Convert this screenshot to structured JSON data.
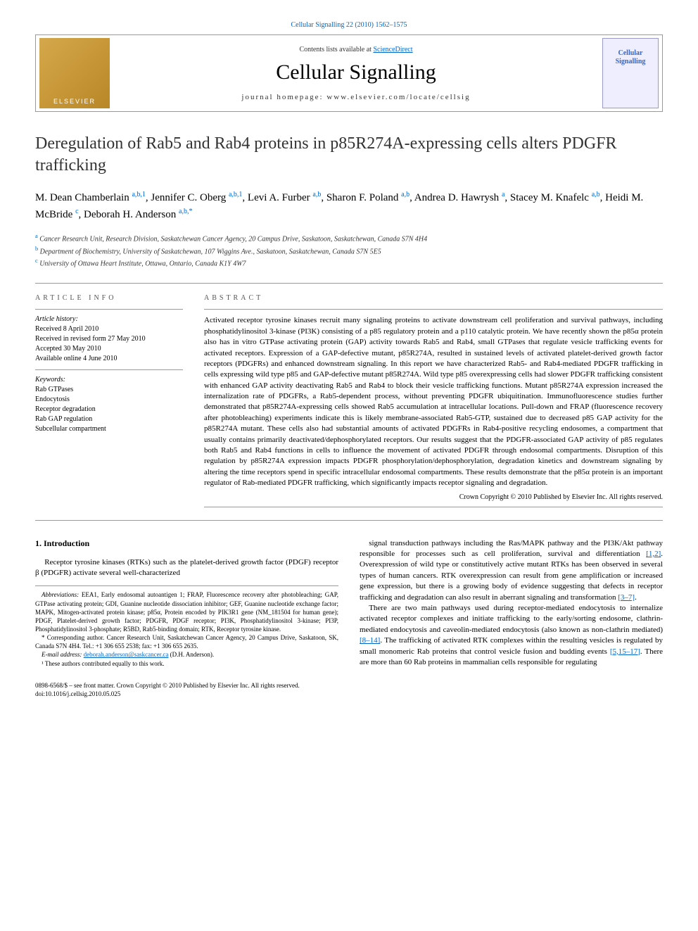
{
  "top_citation": "Cellular Signalling 22 (2010) 1562–1575",
  "header": {
    "contents_text_prefix": "Contents lists available at ",
    "contents_link": "ScienceDirect",
    "journal_name": "Cellular Signalling",
    "homepage_label": "journal homepage: ",
    "homepage_url": "www.elsevier.com/locate/cellsig",
    "publisher_logo": "ELSEVIER",
    "cover_text": "Cellular Signalling"
  },
  "article": {
    "title": "Deregulation of Rab5 and Rab4 proteins in p85R274A-expressing cells alters PDGFR trafficking"
  },
  "authors": [
    {
      "name": "M. Dean Chamberlain",
      "sup": "a,b,1"
    },
    {
      "name": "Jennifer C. Oberg",
      "sup": "a,b,1"
    },
    {
      "name": "Levi A. Furber",
      "sup": "a,b"
    },
    {
      "name": "Sharon F. Poland",
      "sup": "a,b"
    },
    {
      "name": "Andrea D. Hawrysh",
      "sup": "a"
    },
    {
      "name": "Stacey M. Knafelc",
      "sup": "a,b"
    },
    {
      "name": "Heidi M. McBride",
      "sup": "c"
    },
    {
      "name": "Deborah H. Anderson",
      "sup": "a,b,*"
    }
  ],
  "affiliations": {
    "a": "Cancer Research Unit, Research Division, Saskatchewan Cancer Agency, 20 Campus Drive, Saskatoon, Saskatchewan, Canada S7N 4H4",
    "b": "Department of Biochemistry, University of Saskatchewan, 107 Wiggins Ave., Saskatoon, Saskatchewan, Canada S7N 5E5",
    "c": "University of Ottawa Heart Institute, Ottawa, Ontario, Canada K1Y 4W7"
  },
  "article_info": {
    "heading": "ARTICLE INFO",
    "history_label": "Article history:",
    "history": [
      "Received 8 April 2010",
      "Received in revised form 27 May 2010",
      "Accepted 30 May 2010",
      "Available online 4 June 2010"
    ],
    "keywords_label": "Keywords:",
    "keywords": [
      "Rab GTPases",
      "Endocytosis",
      "Receptor degradation",
      "Rab GAP regulation",
      "Subcellular compartment"
    ]
  },
  "abstract": {
    "heading": "ABSTRACT",
    "text": "Activated receptor tyrosine kinases recruit many signaling proteins to activate downstream cell proliferation and survival pathways, including phosphatidylinositol 3-kinase (PI3K) consisting of a p85 regulatory protein and a p110 catalytic protein. We have recently shown the p85α protein also has in vitro GTPase activating protein (GAP) activity towards Rab5 and Rab4, small GTPases that regulate vesicle trafficking events for activated receptors. Expression of a GAP-defective mutant, p85R274A, resulted in sustained levels of activated platelet-derived growth factor receptors (PDGFRs) and enhanced downstream signaling. In this report we have characterized Rab5- and Rab4-mediated PDGFR trafficking in cells expressing wild type p85 and GAP-defective mutant p85R274A. Wild type p85 overexpressing cells had slower PDGFR trafficking consistent with enhanced GAP activity deactivating Rab5 and Rab4 to block their vesicle trafficking functions. Mutant p85R274A expression increased the internalization rate of PDGFRs, a Rab5-dependent process, without preventing PDGFR ubiquitination. Immunofluorescence studies further demonstrated that p85R274A-expressing cells showed Rab5 accumulation at intracellular locations. Pull-down and FRAP (fluorescence recovery after photobleaching) experiments indicate this is likely membrane-associated Rab5-GTP, sustained due to decreased p85 GAP activity for the p85R274A mutant. These cells also had substantial amounts of activated PDGFRs in Rab4-positive recycling endosomes, a compartment that usually contains primarily deactivated/dephosphorylated receptors. Our results suggest that the PDGFR-associated GAP activity of p85 regulates both Rab5 and Rab4 functions in cells to influence the movement of activated PDGFR through endosomal compartments. Disruption of this regulation by p85R274A expression impacts PDGFR phosphorylation/dephosphorylation, degradation kinetics and downstream signaling by altering the time receptors spend in specific intracellular endosomal compartments. These results demonstrate that the p85α protein is an important regulator of Rab-mediated PDGFR trafficking, which significantly impacts receptor signaling and degradation.",
    "copyright": "Crown Copyright © 2010 Published by Elsevier Inc. All rights reserved."
  },
  "introduction": {
    "heading": "1. Introduction",
    "para1": "Receptor tyrosine kinases (RTKs) such as the platelet-derived growth factor (PDGF) receptor β (PDGFR) activate several well-characterized",
    "para2_pre": "signal transduction pathways including the Ras/MAPK pathway and the PI3K/Akt pathway responsible for processes such as cell proliferation, survival and differentiation ",
    "ref1": "[1,2]",
    "para2_post": ". Overexpression of wild type or constitutively active mutant RTKs has been observed in several types of human cancers. RTK overexpression can result from gene amplification or increased gene expression, but there is a growing body of evidence suggesting that defects in receptor trafficking and degradation can also result in aberrant signaling and transformation ",
    "ref2": "[3–7]",
    "period1": ".",
    "para3_pre": "There are two main pathways used during receptor-mediated endocytosis to internalize activated receptor complexes and initiate trafficking to the early/sorting endosome, clathrin-mediated endocytosis and caveolin-mediated endocytosis (also known as non-clathrin mediated) ",
    "ref3": "[8–14]",
    "para3_mid": ". The trafficking of activated RTK complexes within the resulting vesicles is regulated by small monomeric Rab proteins that control vesicle fusion and budding events ",
    "ref4": "[5,15–17]",
    "para3_post": ". There are more than 60 Rab proteins in mammalian cells responsible for regulating"
  },
  "footnotes": {
    "abbrev_label": "Abbreviations:",
    "abbrev_text": " EEA1, Early endosomal autoantigen 1; FRAP, Fluorescence recovery after photobleaching; GAP, GTPase activating protein; GDI, Guanine nucleotide dissociation inhibitor; GEF, Guanine nucleotide exchange factor; MAPK, Mitogen-activated protein kinase; p85α, Protein encoded by PIK3R1 gene (NM_181504 for human gene); PDGF, Platelet-derived growth factor; PDGFR, PDGF receptor; PI3K, Phosphatidylinositol 3-kinase; PI3P, Phosphatidylinositol 3-phosphate; R5BD, Rab5-binding domain; RTK, Receptor tyrosine kinase.",
    "corr_label": "* Corresponding author.",
    "corr_text": " Cancer Research Unit, Saskatchewan Cancer Agency, 20 Campus Drive, Saskatoon, SK, Canada S7N 4H4. Tel.: +1 306 655 2538; fax: +1 306 655 2635.",
    "email_label": "E-mail address:",
    "email": "deborah.anderson@saskcancer.ca",
    "email_person": " (D.H. Anderson).",
    "note1": "¹ These authors contributed equally to this work."
  },
  "footer": {
    "line1": "0898-6568/$ – see front matter. Crown Copyright © 2010 Published by Elsevier Inc. All rights reserved.",
    "line2": "doi:10.1016/j.cellsig.2010.05.025"
  },
  "colors": {
    "link": "#0066cc",
    "text": "#222222",
    "rule": "#999999"
  }
}
